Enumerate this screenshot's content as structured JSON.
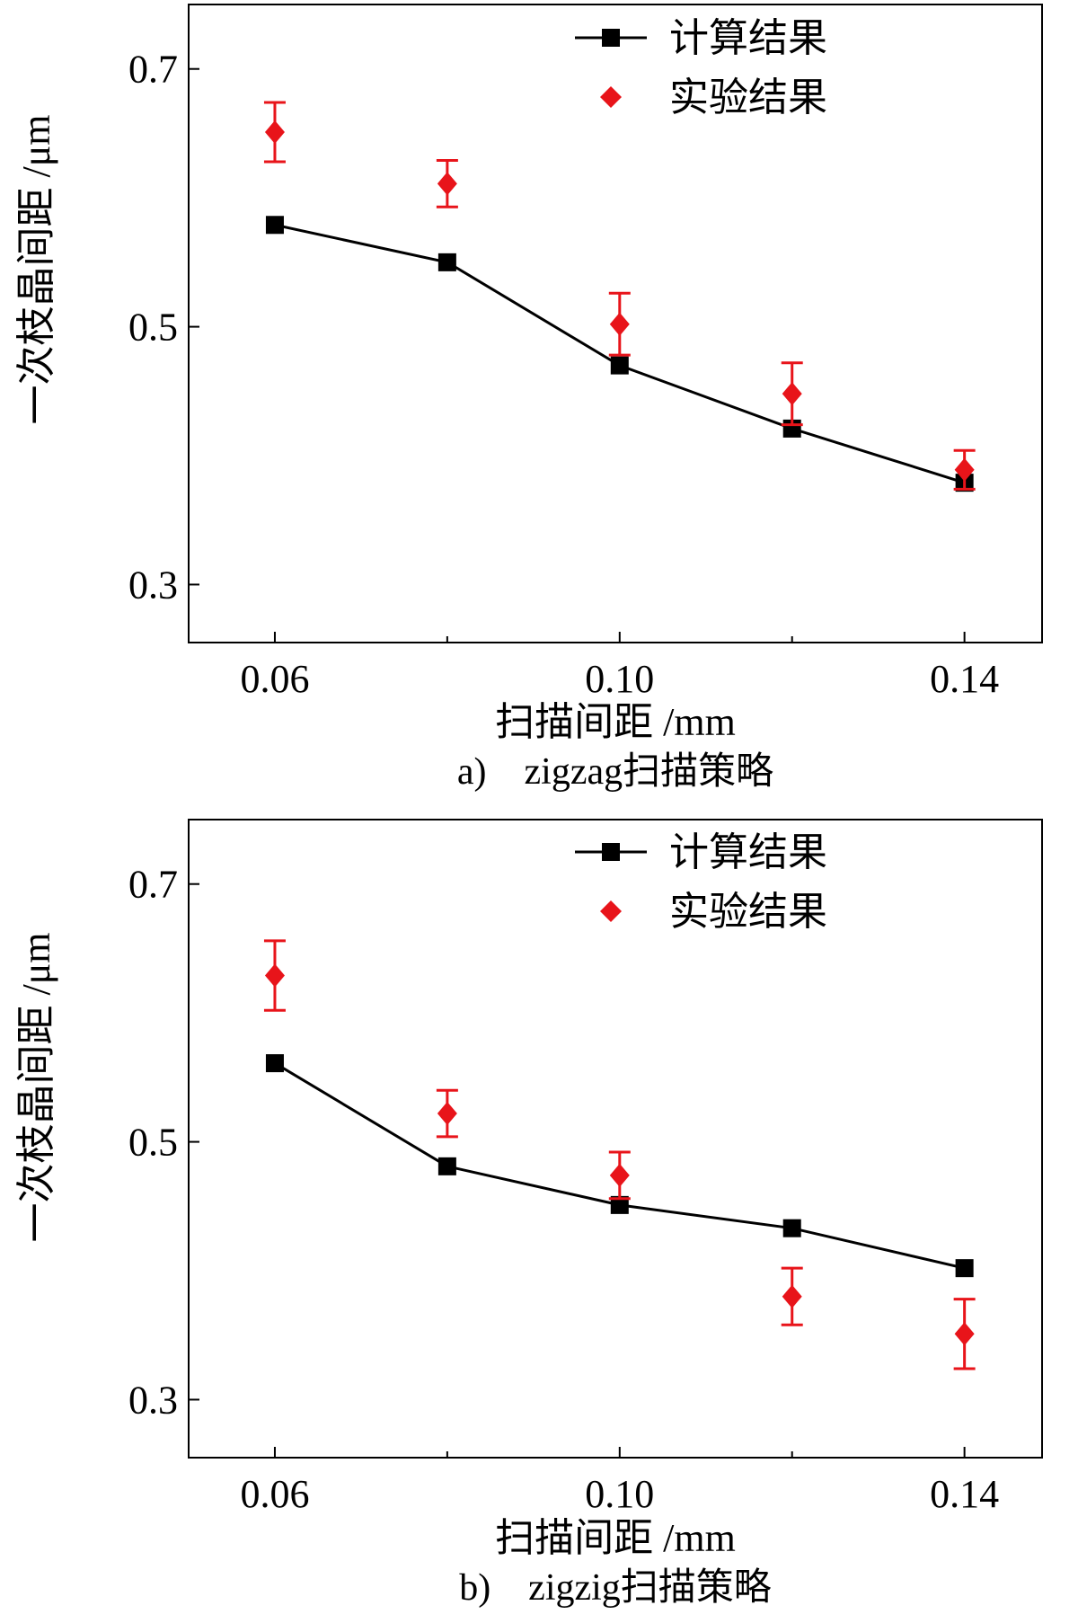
{
  "chart_data": [
    {
      "type": "line",
      "caption": "a)　zigzag扫描策略",
      "xlabel": "扫描间距 /mm",
      "ylabel": "一次枝晶间距 /μm",
      "x_ticks": [
        "0.06",
        "0.10",
        "0.14"
      ],
      "y_ticks": [
        "0.3",
        "0.5",
        "0.7"
      ],
      "xlim": [
        0.05,
        0.149
      ],
      "ylim": [
        0.255,
        0.75
      ],
      "legend_position": "top-right",
      "series": [
        {
          "name": "计算结果",
          "marker": "square",
          "color": "#000000",
          "x": [
            0.06,
            0.08,
            0.1,
            0.12,
            0.14
          ],
          "y": [
            0.579,
            0.55,
            0.47,
            0.421,
            0.379
          ]
        },
        {
          "name": "实验结果",
          "marker": "diamond",
          "color": "#e8141a",
          "x": [
            0.06,
            0.08,
            0.1,
            0.12,
            0.14
          ],
          "y": [
            0.651,
            0.611,
            0.502,
            0.448,
            0.389
          ],
          "error": [
            0.023,
            0.018,
            0.024,
            0.024,
            0.015
          ]
        }
      ]
    },
    {
      "type": "line",
      "caption": "b)　zigzig扫描策略",
      "xlabel": "扫描间距 /mm",
      "ylabel": "一次枝晶间距 /μm",
      "x_ticks": [
        "0.06",
        "0.10",
        "0.14"
      ],
      "y_ticks": [
        "0.3",
        "0.5",
        "0.7"
      ],
      "xlim": [
        0.05,
        0.149
      ],
      "ylim": [
        0.255,
        0.75
      ],
      "legend_position": "top-right",
      "series": [
        {
          "name": "计算结果",
          "marker": "square",
          "color": "#000000",
          "x": [
            0.06,
            0.08,
            0.1,
            0.12,
            0.14
          ],
          "y": [
            0.561,
            0.481,
            0.451,
            0.433,
            0.402
          ]
        },
        {
          "name": "实验结果",
          "marker": "diamond",
          "color": "#e8141a",
          "x": [
            0.06,
            0.08,
            0.1,
            0.12,
            0.14
          ],
          "y": [
            0.629,
            0.522,
            0.474,
            0.38,
            0.351
          ],
          "error": [
            0.027,
            0.018,
            0.018,
            0.022,
            0.027
          ]
        }
      ]
    }
  ]
}
